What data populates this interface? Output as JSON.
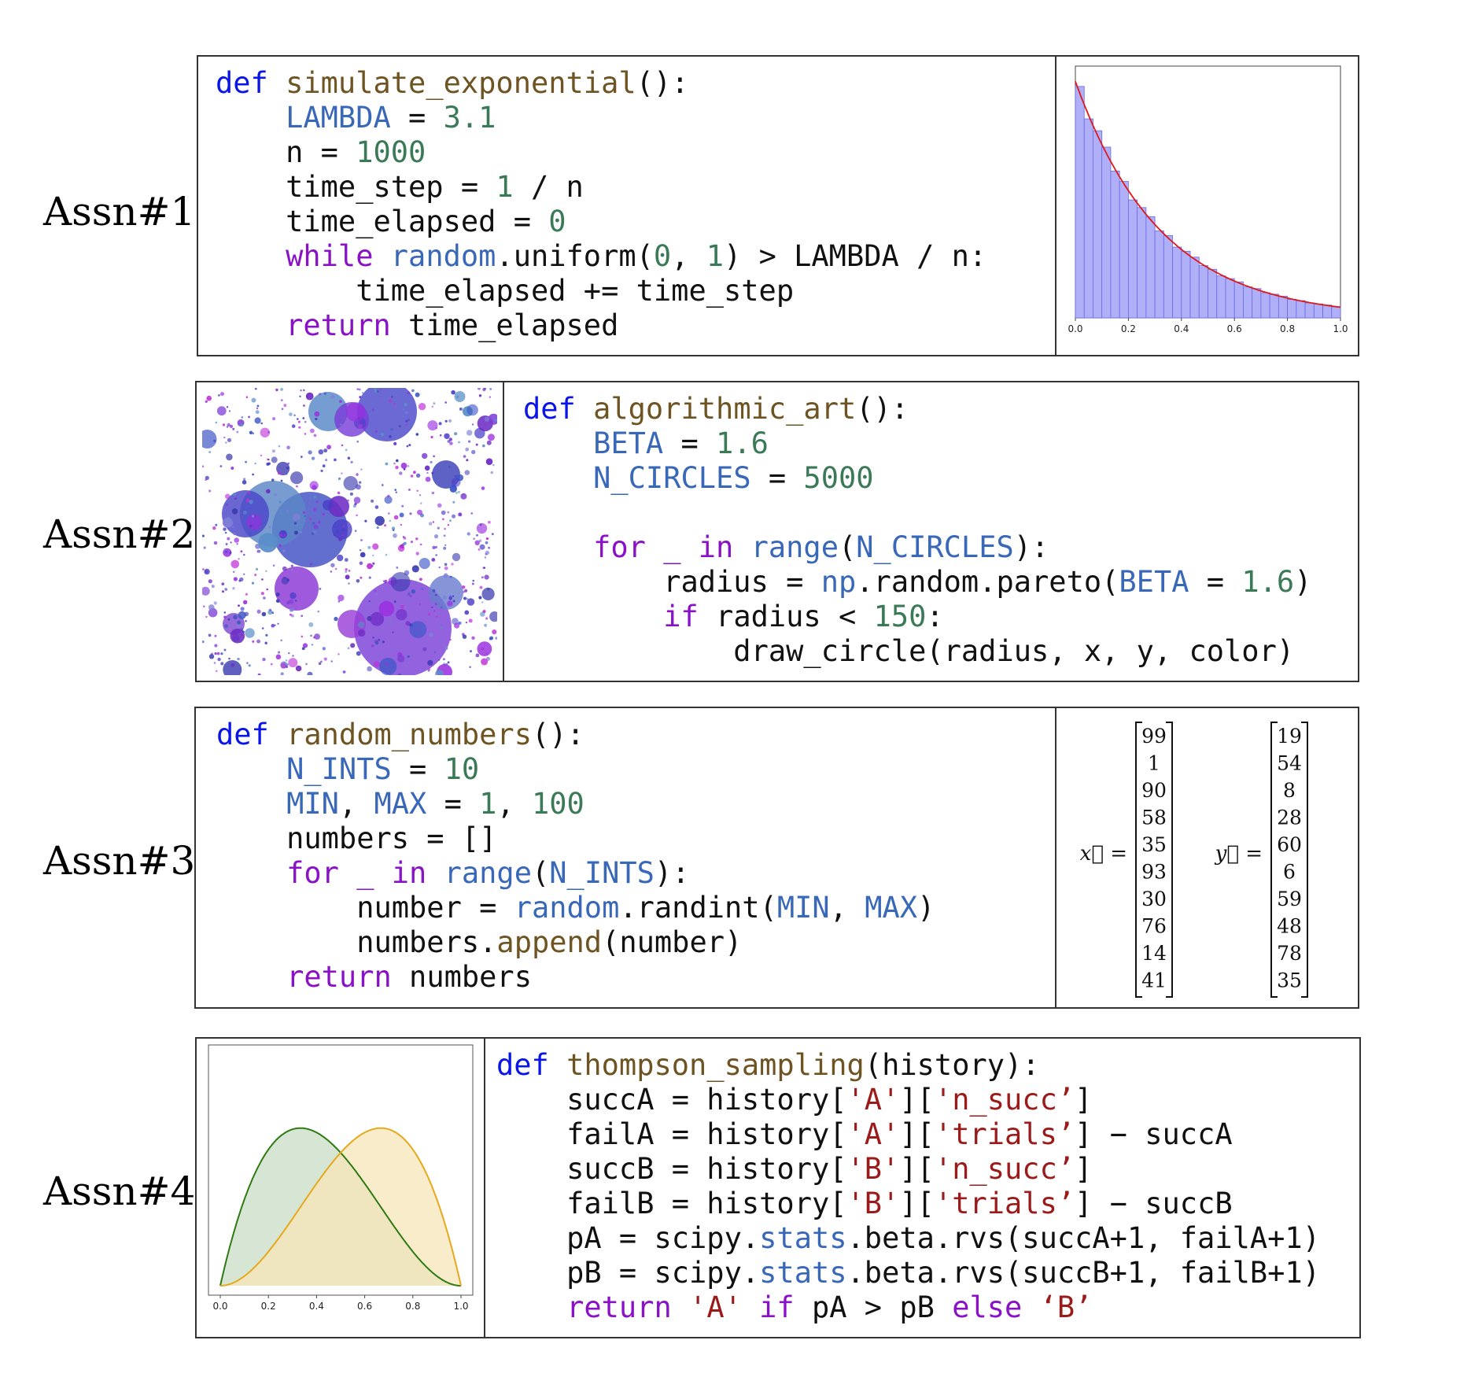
{
  "labels": [
    "Assn#1",
    "Assn#2",
    "Assn#3",
    "Assn#4"
  ],
  "code1": [
    [
      [
        "kw",
        "def "
      ],
      [
        "fn",
        "simulate_exponential"
      ],
      [
        "op",
        "():"
      ]
    ],
    [
      [
        "op",
        "    "
      ],
      [
        "cn",
        "LAMBDA"
      ],
      [
        "op",
        " = "
      ],
      [
        "nm",
        "3.1"
      ]
    ],
    [
      [
        "op",
        "    n = "
      ],
      [
        "nm",
        "1000"
      ]
    ],
    [
      [
        "op",
        "    time_step = "
      ],
      [
        "nm",
        "1"
      ],
      [
        "op",
        " / n"
      ]
    ],
    [
      [
        "op",
        "    time_elapsed = "
      ],
      [
        "nm",
        "0"
      ]
    ],
    [
      [
        "kp",
        "    while "
      ],
      [
        "cn",
        "random"
      ],
      [
        "op",
        ".uniform("
      ],
      [
        "nm",
        "0"
      ],
      [
        "op",
        ", "
      ],
      [
        "nm",
        "1"
      ],
      [
        "op",
        ") > LAMBDA / n:"
      ]
    ],
    [
      [
        "op",
        "        time_elapsed += time_step"
      ]
    ],
    [
      [
        "kp",
        "    return "
      ],
      [
        "op",
        "time_elapsed"
      ]
    ]
  ],
  "code2": [
    [
      [
        "kw",
        "def "
      ],
      [
        "fn",
        "algorithmic_art"
      ],
      [
        "op",
        "():"
      ]
    ],
    [
      [
        "op",
        "    "
      ],
      [
        "cn",
        "BETA"
      ],
      [
        "op",
        " = "
      ],
      [
        "nm",
        "1.6"
      ]
    ],
    [
      [
        "op",
        "    "
      ],
      [
        "cn",
        "N_CIRCLES"
      ],
      [
        "op",
        " = "
      ],
      [
        "nm",
        "5000"
      ]
    ],
    [
      [
        "op",
        " "
      ]
    ],
    [
      [
        "kp",
        "    for _ in "
      ],
      [
        "cn",
        "range"
      ],
      [
        "op",
        "("
      ],
      [
        "cn",
        "N_CIRCLES"
      ],
      [
        "op",
        "):"
      ]
    ],
    [
      [
        "op",
        "        radius = "
      ],
      [
        "cn",
        "np"
      ],
      [
        "op",
        ".random.pareto("
      ],
      [
        "cn",
        "BETA"
      ],
      [
        "op",
        " = "
      ],
      [
        "nm",
        "1.6"
      ],
      [
        "op",
        ")"
      ]
    ],
    [
      [
        "kp",
        "        if "
      ],
      [
        "op",
        "radius < "
      ],
      [
        "nm",
        "150"
      ],
      [
        "op",
        ":"
      ]
    ],
    [
      [
        "op",
        "            draw_circle(radius, x, y, color)"
      ]
    ]
  ],
  "code3": [
    [
      [
        "kw",
        "def "
      ],
      [
        "fn",
        "random_numbers"
      ],
      [
        "op",
        "():"
      ]
    ],
    [
      [
        "op",
        "    "
      ],
      [
        "cn",
        "N_INTS"
      ],
      [
        "op",
        " = "
      ],
      [
        "nm",
        "10"
      ]
    ],
    [
      [
        "op",
        "    "
      ],
      [
        "cn",
        "MIN"
      ],
      [
        "op",
        ", "
      ],
      [
        "cn",
        "MAX"
      ],
      [
        "op",
        " = "
      ],
      [
        "nm",
        "1"
      ],
      [
        "op",
        ", "
      ],
      [
        "nm",
        "100"
      ]
    ],
    [
      [
        "op",
        "    numbers = []"
      ]
    ],
    [
      [
        "kp",
        "    for _ in "
      ],
      [
        "cn",
        "range"
      ],
      [
        "op",
        "("
      ],
      [
        "cn",
        "N_INTS"
      ],
      [
        "op",
        "):"
      ]
    ],
    [
      [
        "op",
        "        number = "
      ],
      [
        "cn",
        "random"
      ],
      [
        "op",
        ".randint("
      ],
      [
        "cn",
        "MIN"
      ],
      [
        "op",
        ", "
      ],
      [
        "cn",
        "MAX"
      ],
      [
        "op",
        ")"
      ]
    ],
    [
      [
        "op",
        "        numbers."
      ],
      [
        "fn",
        "append"
      ],
      [
        "op",
        "(number)"
      ]
    ],
    [
      [
        "kp",
        "    return "
      ],
      [
        "op",
        "numbers"
      ]
    ]
  ],
  "code4": [
    [
      [
        "kw",
        "def "
      ],
      [
        "fn",
        "thompson_sampling"
      ],
      [
        "op",
        "(history):"
      ]
    ],
    [
      [
        "op",
        "    succA = history["
      ],
      [
        "st",
        "'A'"
      ],
      [
        "op",
        "]["
      ],
      [
        "st",
        "'n_succ’"
      ],
      [
        "op",
        "]"
      ]
    ],
    [
      [
        "op",
        "    failA = history["
      ],
      [
        "st",
        "'A'"
      ],
      [
        "op",
        "]["
      ],
      [
        "st",
        "'trials’"
      ],
      [
        "op",
        "] − succA"
      ]
    ],
    [
      [
        "op",
        "    succB = history["
      ],
      [
        "st",
        "'B'"
      ],
      [
        "op",
        "]["
      ],
      [
        "st",
        "'n_succ’"
      ],
      [
        "op",
        "]"
      ]
    ],
    [
      [
        "op",
        "    failB = history["
      ],
      [
        "st",
        "'B'"
      ],
      [
        "op",
        "]["
      ],
      [
        "st",
        "'trials’"
      ],
      [
        "op",
        "] − succB"
      ]
    ],
    [
      [
        "op",
        "    pA = scipy."
      ],
      [
        "cn",
        "stats"
      ],
      [
        "op",
        ".beta.rvs(succA+1, failA+1)"
      ]
    ],
    [
      [
        "op",
        "    pB = scipy."
      ],
      [
        "cn",
        "stats"
      ],
      [
        "op",
        ".beta.rvs(succB+1, failB+1)"
      ]
    ],
    [
      [
        "kp",
        "    return "
      ],
      [
        "st",
        "'A' "
      ],
      [
        "kp",
        "if "
      ],
      [
        "op",
        "pA > pB "
      ],
      [
        "kp",
        "else "
      ],
      [
        "st",
        "‘B’"
      ]
    ]
  ],
  "hist": {
    "xticks": [
      "0.0",
      "0.2",
      "0.4",
      "0.6",
      "0.8",
      "1.0"
    ],
    "bar_color": "#b0b0f8",
    "curve_color": "#e01818"
  },
  "beta": {
    "xticks": [
      "0.0",
      "0.2",
      "0.4",
      "0.6",
      "0.8",
      "1.0"
    ],
    "green": "#2f7a12",
    "green_fill": "#d3e3cf",
    "orange": "#e6a91c",
    "orange_fill": "#f7e6b9"
  },
  "vectors": {
    "x_label": "x⃗ =",
    "y_label": "y⃗ =",
    "x": [
      "99",
      "1",
      "90",
      "58",
      "35",
      "93",
      "30",
      "76",
      "14",
      "41"
    ],
    "y": [
      "19",
      "54",
      "8",
      "28",
      "60",
      "6",
      "59",
      "48",
      "78",
      "35"
    ]
  }
}
